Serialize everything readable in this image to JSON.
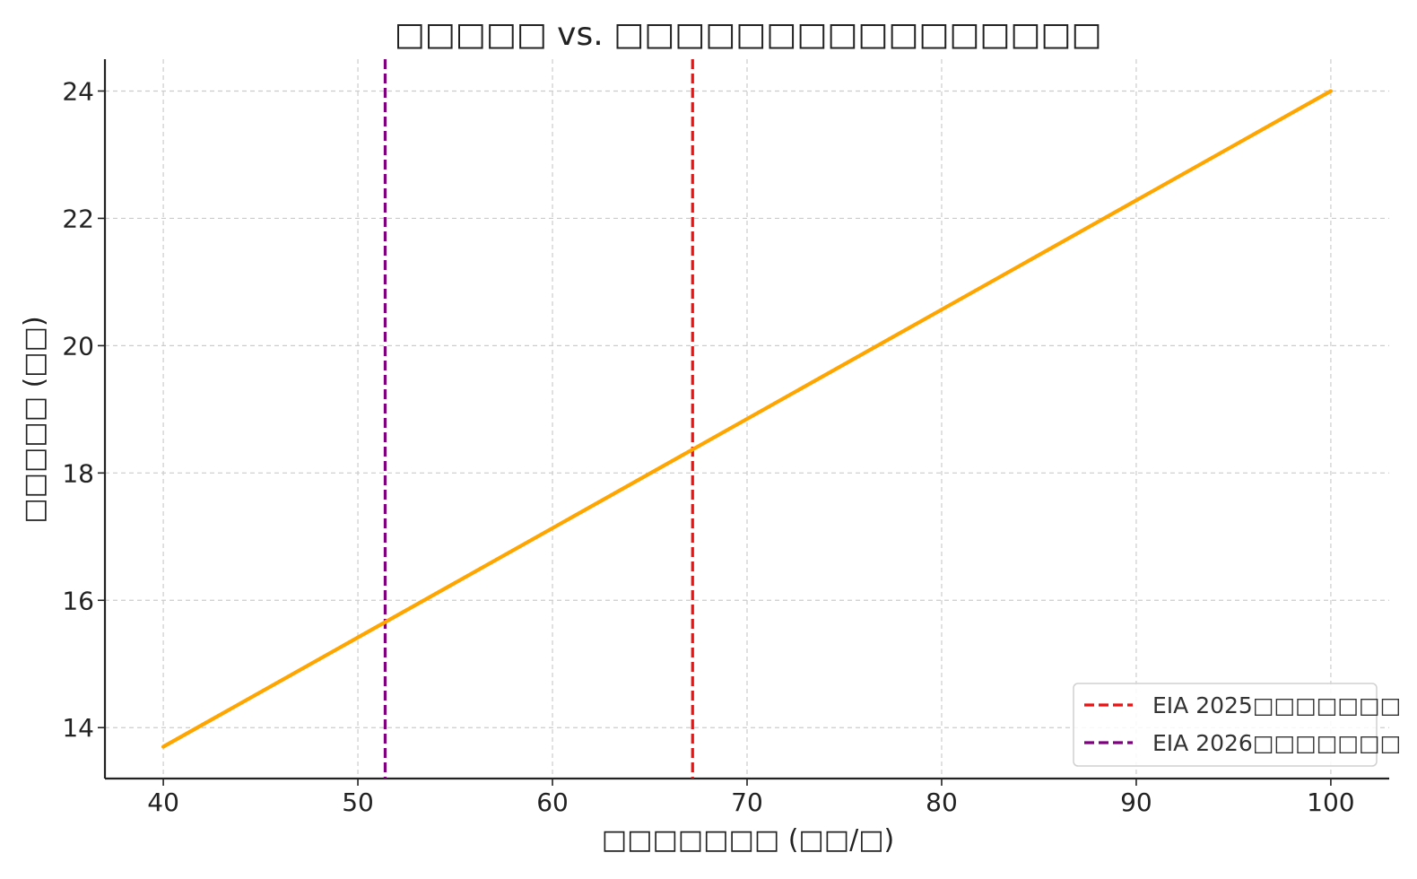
{
  "chart_data": {
    "type": "line",
    "title": "□□□□□ vs. □□□□□□□□□□□□□□□□",
    "xlabel": "□□□□□□□ (□□/□)",
    "ylabel": "□□□□□ (□□)",
    "xlim": [
      37,
      103
    ],
    "ylim": [
      13.2,
      24.5
    ],
    "xticks": [
      40,
      50,
      60,
      70,
      80,
      90,
      100
    ],
    "yticks": [
      14,
      16,
      18,
      20,
      22,
      24
    ],
    "grid": true,
    "legend_position": "lower-right",
    "series": [
      {
        "color": "#ffa500",
        "x": [
          40,
          100
        ],
        "y": [
          13.7,
          24.0
        ]
      }
    ],
    "vlines": [
      {
        "name": "EIA 2025□□□□□□□",
        "x": 67.2,
        "color": "#ee1111",
        "style": "dashed"
      },
      {
        "name": "EIA 2026□□□□□□□",
        "x": 51.4,
        "color": "#800080",
        "style": "dashed"
      }
    ]
  }
}
